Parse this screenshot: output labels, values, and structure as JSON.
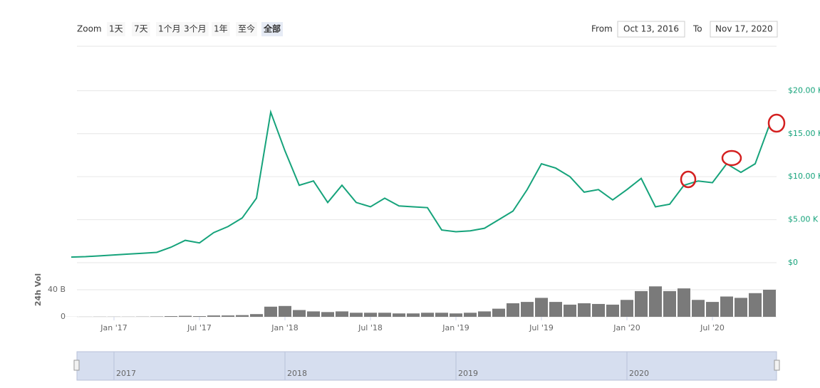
{
  "toolbar": {
    "zoom_label": "Zoom",
    "buttons": [
      "1天",
      "7天",
      "1个月",
      "3个月",
      "1年",
      "至今",
      "全部"
    ],
    "selected": 6,
    "from_label": "From",
    "from": "Oct 13, 2016",
    "to_label": "To",
    "to": "Nov 17, 2020"
  },
  "chart_data": {
    "type": "line",
    "x": [
      "2016-10",
      "2016-11",
      "2016-12",
      "2017-01",
      "2017-02",
      "2017-03",
      "2017-04",
      "2017-05",
      "2017-06",
      "2017-07",
      "2017-08",
      "2017-09",
      "2017-10",
      "2017-11",
      "2017-12",
      "2018-01",
      "2018-02",
      "2018-03",
      "2018-04",
      "2018-05",
      "2018-06",
      "2018-07",
      "2018-08",
      "2018-09",
      "2018-10",
      "2018-11",
      "2018-12",
      "2019-01",
      "2019-02",
      "2019-03",
      "2019-04",
      "2019-05",
      "2019-06",
      "2019-07",
      "2019-08",
      "2019-09",
      "2019-10",
      "2019-11",
      "2019-12",
      "2020-01",
      "2020-02",
      "2020-03",
      "2020-04",
      "2020-05",
      "2020-06",
      "2020-07",
      "2020-08",
      "2020-09",
      "2020-10",
      "2020-11"
    ],
    "xlim": [
      "2016-10",
      "2020-11"
    ],
    "xticks": [
      {
        "value": "2017-01",
        "label": "Jan '17"
      },
      {
        "value": "2017-07",
        "label": "Jul '17"
      },
      {
        "value": "2018-01",
        "label": "Jan '18"
      },
      {
        "value": "2018-07",
        "label": "Jul '18"
      },
      {
        "value": "2019-01",
        "label": "Jan '19"
      },
      {
        "value": "2019-07",
        "label": "Jul '19"
      },
      {
        "value": "2020-01",
        "label": "Jan '20"
      },
      {
        "value": "2020-07",
        "label": "Jul '20"
      }
    ],
    "navigator_ticks": [
      {
        "value": "2017-01",
        "label": "2017"
      },
      {
        "value": "2018-01",
        "label": "2018"
      },
      {
        "value": "2019-01",
        "label": "2019"
      },
      {
        "value": "2020-01",
        "label": "2020"
      }
    ],
    "ylim": [
      0,
      24000
    ],
    "yticks": [
      {
        "value": 0,
        "label": "$0"
      },
      {
        "value": 5000,
        "label": "$5.00 K"
      },
      {
        "value": 10000,
        "label": "$10.00 K"
      },
      {
        "value": 15000,
        "label": "$15.00 K"
      },
      {
        "value": 20000,
        "label": "$20.00 K"
      }
    ],
    "y2lim": [
      0,
      80000000000.0
    ],
    "y2ticks": [
      0,
      {
        "value": 40000000000.0,
        "label": "40 B"
      }
    ],
    "grid": true,
    "series": [
      {
        "color": "#16a37b",
        "values": [
          650,
          700,
          800,
          900,
          1000,
          1100,
          1200,
          1800,
          2600,
          2300,
          3500,
          4200,
          5200,
          7500,
          17500,
          13000,
          9000,
          9500,
          7000,
          9000,
          7000,
          6500,
          7500,
          6600,
          6500,
          6400,
          3800,
          3600,
          3700,
          4000,
          5000,
          6000,
          8500,
          11500,
          11000,
          10000,
          8200,
          8500,
          7300,
          8500,
          9800,
          6500,
          6800,
          9000,
          9500,
          9300,
          11500,
          10500,
          11500,
          16000
        ]
      },
      {
        "name": "24h Vol",
        "axis": "y2",
        "color": "#7a7a7a",
        "values": [
          100000000.0,
          100000000.0,
          200000000.0,
          200000000.0,
          200000000.0,
          300000000.0,
          500000000.0,
          1000000000.0,
          1500000000.0,
          1000000000.0,
          2000000000.0,
          2000000000.0,
          2500000000.0,
          4000000000.0,
          15000000000.0,
          16000000000.0,
          10000000000.0,
          8000000000.0,
          7000000000.0,
          8000000000.0,
          6000000000.0,
          6000000000.0,
          6000000000.0,
          5000000000.0,
          5000000000.0,
          6000000000.0,
          6000000000.0,
          5000000000.0,
          6000000000.0,
          8000000000.0,
          12000000000.0,
          20000000000.0,
          22000000000.0,
          28000000000.0,
          22000000000.0,
          18000000000.0,
          20000000000.0,
          19000000000.0,
          18000000000.0,
          25000000000.0,
          38000000000.0,
          45000000000.0,
          38000000000.0,
          42000000000.0,
          25000000000.0,
          22000000000.0,
          30000000000.0,
          28000000000.0,
          35000000000.0,
          40000000000.0
        ]
      }
    ]
  }
}
